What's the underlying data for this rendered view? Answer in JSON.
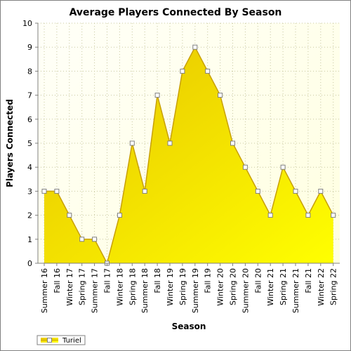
{
  "chart_data": {
    "type": "area",
    "title": "Average Players Connected By Season",
    "xlabel": "Season",
    "ylabel": "Players Connected",
    "ylim": [
      0,
      10
    ],
    "yticks": [
      0,
      1,
      2,
      3,
      4,
      5,
      6,
      7,
      8,
      9,
      10
    ],
    "grid": true,
    "legend_position": "bottom-left",
    "categories": [
      "Summer 16",
      "Fall 16",
      "Winter 17",
      "Spring 17",
      "Summer 17",
      "Fall 17",
      "Winter 18",
      "Spring 18",
      "Summer 18",
      "Fall 18",
      "Winter 19",
      "Spring 19",
      "Summer 19",
      "Fall 19",
      "Winter 20",
      "Spring 20",
      "Summer 20",
      "Fall 20",
      "Winter 21",
      "Spring 21",
      "Summer 21",
      "Fall 21",
      "Winter 22",
      "Spring 22"
    ],
    "series": [
      {
        "name": "Turiel",
        "values": [
          3,
          3,
          2,
          1,
          1,
          0,
          2,
          5,
          3,
          7,
          5,
          8,
          9,
          8,
          7,
          5,
          4,
          3,
          2,
          4,
          3,
          2,
          3,
          2
        ]
      }
    ],
    "colors": {
      "fill_light": "#ffff00",
      "fill_dark": "#e6c200",
      "line": "#c8a000",
      "marker_fill": "#ffffff",
      "marker_stroke": "#808080",
      "plot_bg": "#fffff0",
      "grid": "#c8c8a0"
    }
  }
}
